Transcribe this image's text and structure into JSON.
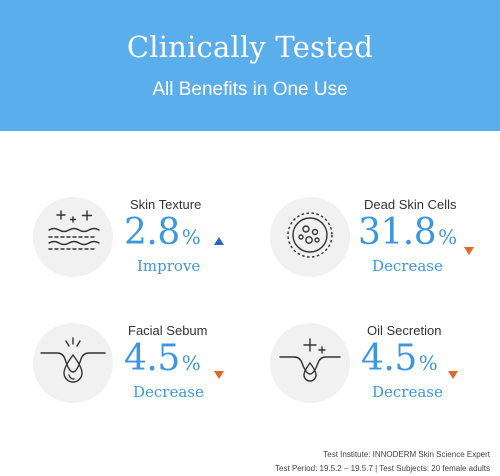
{
  "header": {
    "title": "Clinically Tested",
    "subtitle": "All Benefits in One Use",
    "background_color": "#5aaeeb"
  },
  "stats": [
    {
      "label": "Skin Texture",
      "value": "2.8",
      "unit": "%",
      "trend": "up",
      "result": "Improve",
      "icon": "skin-texture-sparkle-icon"
    },
    {
      "label": "Dead Skin Cells",
      "value": "31.8",
      "unit": "%",
      "trend": "down",
      "result": "Decrease",
      "icon": "dead-skin-cells-icon"
    },
    {
      "label": "Facial Sebum",
      "value": "4.5",
      "unit": "%",
      "trend": "down",
      "result": "Decrease",
      "icon": "sebum-drop-icon"
    },
    {
      "label": "Oil Secretion",
      "value": "4.5",
      "unit": "%",
      "trend": "down",
      "result": "Decrease",
      "icon": "oil-secretion-sparkle-icon"
    }
  ],
  "colors": {
    "accent": "#3d97df",
    "up_arrow": "#2a63c7",
    "down_arrow": "#e2662a",
    "circle_bg": "#f1f1f1"
  },
  "footer": {
    "institute": "Test Institute: INNODERM Skin Science Expert",
    "period": "Test Period: 19.5.2 – 19.5.7 | Test Subjects: 20 female adults"
  }
}
